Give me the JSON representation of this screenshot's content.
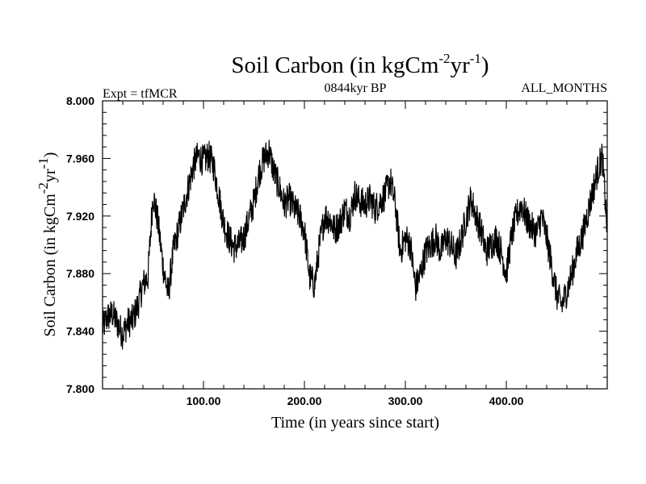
{
  "chart_data": {
    "type": "line",
    "title": {
      "main": "Soil Carbon (in kgCm",
      "exp1": "-2",
      "mid": "yr",
      "exp2": "-1",
      "end": ")"
    },
    "left_label": "Expt = tfMCR",
    "center_label": "0844kyr BP",
    "right_label": "ALL_MONTHS",
    "xlabel": "Time (in years since start)",
    "ylabel": {
      "main": "Soil Carbon (in kgCm",
      "exp1": "-2",
      "mid": "yr",
      "exp2": "-1",
      "end": ")"
    },
    "xlim": [
      0,
      500
    ],
    "ylim": [
      7.8,
      8.0
    ],
    "x_ticks": [
      {
        "value": 100,
        "label": "100.00"
      },
      {
        "value": 200,
        "label": "200.00"
      },
      {
        "value": 300,
        "label": "300.00"
      },
      {
        "value": 400,
        "label": "400.00"
      }
    ],
    "y_ticks": [
      {
        "value": 7.8,
        "label": "7.800"
      },
      {
        "value": 7.84,
        "label": "7.840"
      },
      {
        "value": 7.88,
        "label": "7.880"
      },
      {
        "value": 7.92,
        "label": "7.920"
      },
      {
        "value": 7.96,
        "label": "7.960"
      },
      {
        "value": 8.0,
        "label": "8.000"
      }
    ],
    "series": [
      {
        "name": "Soil Carbon",
        "color": "#000000",
        "x": [
          0,
          5,
          10,
          15,
          20,
          25,
          30,
          35,
          40,
          45,
          50,
          55,
          60,
          65,
          70,
          75,
          80,
          85,
          90,
          95,
          100,
          105,
          110,
          115,
          120,
          125,
          130,
          135,
          140,
          145,
          150,
          155,
          160,
          165,
          170,
          175,
          180,
          185,
          190,
          195,
          200,
          205,
          210,
          215,
          220,
          225,
          230,
          235,
          240,
          245,
          250,
          255,
          260,
          265,
          270,
          275,
          280,
          285,
          290,
          295,
          300,
          305,
          310,
          315,
          320,
          325,
          330,
          335,
          340,
          345,
          350,
          355,
          360,
          365,
          370,
          375,
          380,
          385,
          390,
          395,
          400,
          405,
          410,
          415,
          420,
          425,
          430,
          435,
          440,
          445,
          450,
          455,
          460,
          465,
          470,
          475,
          480,
          485,
          490,
          495,
          500
        ],
        "y": [
          7.842,
          7.85,
          7.852,
          7.845,
          7.838,
          7.846,
          7.848,
          7.858,
          7.872,
          7.878,
          7.935,
          7.915,
          7.885,
          7.865,
          7.895,
          7.91,
          7.925,
          7.94,
          7.955,
          7.962,
          7.958,
          7.962,
          7.955,
          7.935,
          7.915,
          7.905,
          7.898,
          7.9,
          7.905,
          7.918,
          7.93,
          7.95,
          7.96,
          7.965,
          7.95,
          7.94,
          7.928,
          7.932,
          7.925,
          7.92,
          7.91,
          7.878,
          7.872,
          7.9,
          7.92,
          7.918,
          7.91,
          7.915,
          7.925,
          7.92,
          7.935,
          7.93,
          7.928,
          7.932,
          7.925,
          7.93,
          7.935,
          7.945,
          7.928,
          7.895,
          7.905,
          7.9,
          7.87,
          7.88,
          7.895,
          7.9,
          7.905,
          7.895,
          7.905,
          7.9,
          7.892,
          7.903,
          7.918,
          7.932,
          7.92,
          7.91,
          7.895,
          7.9,
          7.905,
          7.895,
          7.88,
          7.905,
          7.92,
          7.928,
          7.918,
          7.912,
          7.908,
          7.92,
          7.905,
          7.885,
          7.865,
          7.858,
          7.868,
          7.88,
          7.895,
          7.905,
          7.92,
          7.935,
          7.95,
          7.962,
          7.91
        ]
      }
    ]
  }
}
